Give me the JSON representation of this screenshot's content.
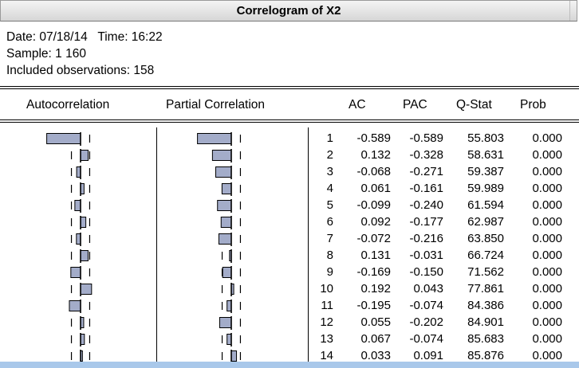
{
  "window": {
    "title": "Correlogram of X2"
  },
  "info": {
    "date_time": "Date: 07/18/14   Time: 16:22",
    "sample": "Sample: 1 160",
    "observations": "Included observations: 158"
  },
  "headers": {
    "autocorrelation": "Autocorrelation",
    "partial_correlation": "Partial Correlation",
    "ac": "AC",
    "pac": "PAC",
    "qstat": "Q-Stat",
    "prob": "Prob"
  },
  "colors": {
    "bar_fill": "#a3acc9",
    "bottom_bar": "#a9c8ea"
  },
  "rows": [
    {
      "lag": "1",
      "ac": "-0.589",
      "pac": "-0.589",
      "q": "55.803",
      "prob": "0.000",
      "ac_val": -0.589,
      "pac_val": -0.589
    },
    {
      "lag": "2",
      "ac": "0.132",
      "pac": "-0.328",
      "q": "58.631",
      "prob": "0.000",
      "ac_val": 0.132,
      "pac_val": -0.328
    },
    {
      "lag": "3",
      "ac": "-0.068",
      "pac": "-0.271",
      "q": "59.387",
      "prob": "0.000",
      "ac_val": -0.068,
      "pac_val": -0.271
    },
    {
      "lag": "4",
      "ac": "0.061",
      "pac": "-0.161",
      "q": "59.989",
      "prob": "0.000",
      "ac_val": 0.061,
      "pac_val": -0.161
    },
    {
      "lag": "5",
      "ac": "-0.099",
      "pac": "-0.240",
      "q": "61.594",
      "prob": "0.000",
      "ac_val": -0.099,
      "pac_val": -0.24
    },
    {
      "lag": "6",
      "ac": "0.092",
      "pac": "-0.177",
      "q": "62.987",
      "prob": "0.000",
      "ac_val": 0.092,
      "pac_val": -0.177
    },
    {
      "lag": "7",
      "ac": "-0.072",
      "pac": "-0.216",
      "q": "63.850",
      "prob": "0.000",
      "ac_val": -0.072,
      "pac_val": -0.216
    },
    {
      "lag": "8",
      "ac": "0.131",
      "pac": "-0.031",
      "q": "66.724",
      "prob": "0.000",
      "ac_val": 0.131,
      "pac_val": -0.031
    },
    {
      "lag": "9",
      "ac": "-0.169",
      "pac": "-0.150",
      "q": "71.562",
      "prob": "0.000",
      "ac_val": -0.169,
      "pac_val": -0.15
    },
    {
      "lag": "10",
      "ac": "0.192",
      "pac": "0.043",
      "q": "77.861",
      "prob": "0.000",
      "ac_val": 0.192,
      "pac_val": 0.043
    },
    {
      "lag": "11",
      "ac": "-0.195",
      "pac": "-0.074",
      "q": "84.386",
      "prob": "0.000",
      "ac_val": -0.195,
      "pac_val": -0.074
    },
    {
      "lag": "12",
      "ac": "0.055",
      "pac": "-0.202",
      "q": "84.901",
      "prob": "0.000",
      "ac_val": 0.055,
      "pac_val": -0.202
    },
    {
      "lag": "13",
      "ac": "0.067",
      "pac": "-0.074",
      "q": "85.683",
      "prob": "0.000",
      "ac_val": 0.067,
      "pac_val": -0.074
    },
    {
      "lag": "14",
      "ac": "0.033",
      "pac": "0.091",
      "q": "85.876",
      "prob": "0.000",
      "ac_val": 0.033,
      "pac_val": 0.091
    }
  ]
}
